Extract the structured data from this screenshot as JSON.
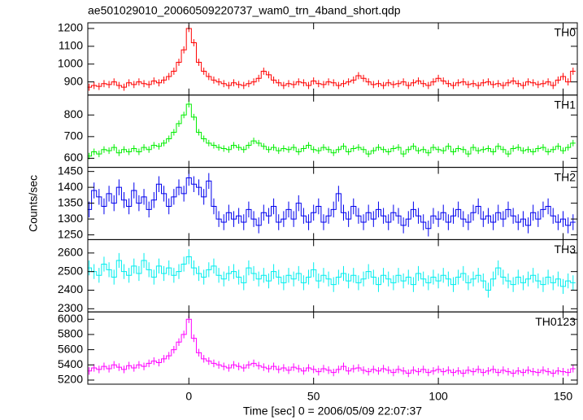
{
  "chart_data": {
    "type": "line",
    "title": "ae501029010_20060509220737_wam0_trn_4band_short.qdp",
    "xlabel": "Time [sec] 0 = 2006/05/09 22:07:37",
    "ylabel": "Counts/sec",
    "xlim": [
      -40.5,
      155.7
    ],
    "xticks": [
      0,
      50,
      100,
      150
    ],
    "x": [
      -40,
      -38,
      -36,
      -34,
      -32,
      -30,
      -28,
      -26,
      -24,
      -22,
      -20,
      -18,
      -16,
      -14,
      -12,
      -10,
      -8,
      -6,
      -4,
      -2,
      0,
      2,
      4,
      6,
      8,
      10,
      12,
      14,
      16,
      18,
      20,
      22,
      24,
      26,
      28,
      30,
      32,
      34,
      36,
      38,
      40,
      42,
      44,
      46,
      48,
      50,
      52,
      54,
      56,
      58,
      60,
      62,
      64,
      66,
      68,
      70,
      72,
      74,
      76,
      78,
      80,
      82,
      84,
      86,
      88,
      90,
      92,
      94,
      96,
      98,
      100,
      102,
      104,
      106,
      108,
      110,
      112,
      114,
      116,
      118,
      120,
      122,
      124,
      126,
      128,
      130,
      132,
      134,
      136,
      138,
      140,
      142,
      144,
      146,
      148,
      150,
      152,
      154
    ],
    "series": [
      {
        "name": "TH0",
        "color": "#ff0000",
        "error": 20,
        "ylim": [
          826,
          1232
        ],
        "yticks": [
          900,
          1000,
          1100,
          1200
        ],
        "values": [
          870,
          880,
          875,
          890,
          885,
          900,
          880,
          870,
          895,
          885,
          900,
          890,
          885,
          905,
          895,
          910,
          930,
          960,
          1010,
          1080,
          1200,
          1120,
          1010,
          960,
          930,
          910,
          900,
          890,
          880,
          895,
          885,
          880,
          890,
          900,
          920,
          960,
          940,
          910,
          895,
          880,
          890,
          885,
          900,
          895,
          880,
          905,
          890,
          885,
          900,
          895,
          880,
          890,
          900,
          910,
          935,
          920,
          900,
          885,
          890,
          880,
          895,
          885,
          890,
          900,
          880,
          895,
          905,
          890,
          880,
          900,
          920,
          905,
          890,
          880,
          895,
          900,
          885,
          890,
          880,
          895,
          900,
          885,
          890,
          880,
          895,
          905,
          890,
          880,
          900,
          895,
          885,
          890,
          900,
          880,
          910,
          930,
          900,
          960
        ]
      },
      {
        "name": "TH1",
        "color": "#00ee00",
        "error": 15,
        "ylim": [
          558,
          892
        ],
        "yticks": [
          600,
          700,
          800
        ],
        "values": [
          610,
          630,
          620,
          640,
          635,
          650,
          625,
          640,
          630,
          645,
          630,
          650,
          640,
          660,
          655,
          670,
          690,
          720,
          760,
          800,
          850,
          790,
          720,
          690,
          670,
          660,
          650,
          645,
          640,
          660,
          650,
          640,
          660,
          680,
          670,
          655,
          640,
          650,
          635,
          645,
          640,
          650,
          630,
          645,
          660,
          640,
          635,
          650,
          640,
          625,
          640,
          655,
          630,
          645,
          650,
          640,
          620,
          635,
          650,
          640,
          630,
          645,
          650,
          620,
          640,
          655,
          635,
          640,
          625,
          650,
          640,
          635,
          655,
          630,
          645,
          640,
          620,
          650,
          635,
          640,
          645,
          630,
          655,
          640,
          620,
          645,
          650,
          635,
          640,
          630,
          645,
          650,
          630,
          640,
          655,
          635,
          650,
          670
        ]
      },
      {
        "name": "TH2",
        "color": "#0000ee",
        "error": 25,
        "ylim": [
          1235,
          1463
        ],
        "yticks": [
          1250,
          1300,
          1350,
          1400,
          1450
        ],
        "values": [
          1330,
          1390,
          1370,
          1340,
          1380,
          1350,
          1400,
          1360,
          1340,
          1390,
          1350,
          1370,
          1330,
          1360,
          1410,
          1380,
          1340,
          1370,
          1400,
          1380,
          1430,
          1410,
          1400,
          1370,
          1420,
          1340,
          1300,
          1290,
          1320,
          1300,
          1310,
          1290,
          1330,
          1300,
          1280,
          1320,
          1310,
          1340,
          1290,
          1300,
          1330,
          1300,
          1350,
          1310,
          1290,
          1320,
          1340,
          1290,
          1310,
          1330,
          1380,
          1320,
          1300,
          1340,
          1310,
          1290,
          1320,
          1300,
          1330,
          1310,
          1290,
          1320,
          1310,
          1280,
          1300,
          1330,
          1310,
          1290,
          1270,
          1310,
          1300,
          1320,
          1290,
          1310,
          1330,
          1300,
          1290,
          1320,
          1340,
          1300,
          1310,
          1290,
          1320,
          1300,
          1330,
          1310,
          1290,
          1300,
          1280,
          1320,
          1300,
          1330,
          1340,
          1310,
          1290,
          1300,
          1280,
          1290
        ]
      },
      {
        "name": "TH3",
        "color": "#00eeee",
        "error": 40,
        "ylim": [
          2283,
          2672
        ],
        "yticks": [
          2300,
          2400,
          2500,
          2600
        ],
        "values": [
          2520,
          2500,
          2480,
          2540,
          2510,
          2470,
          2560,
          2500,
          2480,
          2530,
          2490,
          2560,
          2510,
          2470,
          2530,
          2490,
          2520,
          2480,
          2500,
          2540,
          2580,
          2520,
          2490,
          2470,
          2510,
          2530,
          2480,
          2460,
          2490,
          2500,
          2470,
          2440,
          2520,
          2490,
          2460,
          2480,
          2450,
          2500,
          2470,
          2440,
          2480,
          2460,
          2490,
          2440,
          2470,
          2510,
          2450,
          2480,
          2460,
          2430,
          2470,
          2490,
          2450,
          2480,
          2440,
          2460,
          2500,
          2470,
          2430,
          2480,
          2460,
          2440,
          2480,
          2450,
          2470,
          2430,
          2490,
          2460,
          2440,
          2470,
          2450,
          2480,
          2460,
          2430,
          2470,
          2490,
          2440,
          2460,
          2480,
          2450,
          2400,
          2460,
          2520,
          2470,
          2450,
          2430,
          2470,
          2440,
          2460,
          2480,
          2450,
          2430,
          2470,
          2440,
          2460,
          2420,
          2450,
          2440
        ]
      },
      {
        "name": "TH0123",
        "color": "#ff00ff",
        "error": 50,
        "ylim": [
          5146,
          6097
        ],
        "yticks": [
          5200,
          5400,
          5600,
          5800,
          6000
        ],
        "values": [
          5320,
          5360,
          5340,
          5380,
          5350,
          5400,
          5370,
          5340,
          5390,
          5360,
          5400,
          5380,
          5420,
          5450,
          5430,
          5480,
          5520,
          5600,
          5700,
          5800,
          6000,
          5750,
          5560,
          5480,
          5450,
          5420,
          5400,
          5380,
          5360,
          5400,
          5380,
          5360,
          5400,
          5420,
          5390,
          5370,
          5350,
          5380,
          5340,
          5360,
          5330,
          5370,
          5350,
          5320,
          5360,
          5340,
          5310,
          5350,
          5330,
          5300,
          5340,
          5380,
          5320,
          5350,
          5360,
          5330,
          5310,
          5340,
          5320,
          5350,
          5330,
          5300,
          5340,
          5320,
          5290,
          5330,
          5310,
          5340,
          5300,
          5320,
          5340,
          5310,
          5330,
          5300,
          5320,
          5290,
          5330,
          5310,
          5340,
          5300,
          5320,
          5340,
          5300,
          5330,
          5310,
          5290,
          5320,
          5300,
          5330,
          5310,
          5300,
          5330,
          5310,
          5290,
          5320,
          5310,
          5300,
          5350
        ]
      }
    ]
  }
}
